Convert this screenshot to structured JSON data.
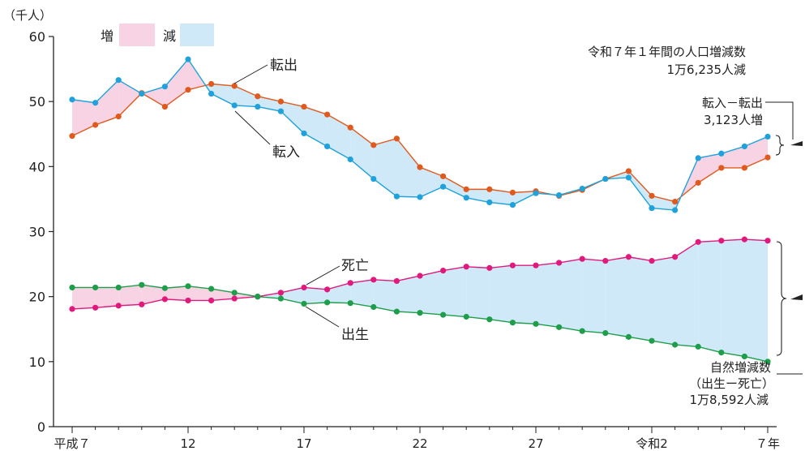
{
  "chart_data": {
    "type": "line",
    "unit_label": "（千人）",
    "ylim": [
      0,
      60
    ],
    "y_ticks": [
      "0",
      "10",
      "20",
      "30",
      "40",
      "50",
      "60"
    ],
    "x_tick_labels": [
      {
        "index": 0,
        "label": "平成７"
      },
      {
        "index": 5,
        "label": "12"
      },
      {
        "index": 10,
        "label": "17"
      },
      {
        "index": 15,
        "label": "22"
      },
      {
        "index": 20,
        "label": "27"
      },
      {
        "index": 25,
        "label": "令和2"
      },
      {
        "index": 30,
        "label": "７年"
      }
    ],
    "legend": {
      "increase": "増",
      "decrease": "減"
    },
    "colors": {
      "increase_fill": "#f8d3e4",
      "decrease_fill": "#cfe9f8",
      "tenshutsu": "#e05a1e",
      "tennyu": "#1fa2dc",
      "shibou": "#e0197d",
      "shussei": "#1e9e4a"
    },
    "series": [
      {
        "name": "転出",
        "key": "tenshutsu",
        "values": [
          44.7,
          46.4,
          47.7,
          51.3,
          49.2,
          51.8,
          52.7,
          52.4,
          50.8,
          50.0,
          49.2,
          48.0,
          46.0,
          43.3,
          44.3,
          39.9,
          38.5,
          36.5,
          36.5,
          36.0,
          36.2,
          35.5,
          36.4,
          38.1,
          39.3,
          35.5,
          34.6,
          37.5,
          39.8,
          39.8,
          41.4
        ]
      },
      {
        "name": "転入",
        "key": "tennyu",
        "values": [
          50.3,
          49.8,
          53.3,
          51.2,
          52.3,
          56.5,
          51.2,
          49.4,
          49.2,
          48.5,
          45.1,
          43.1,
          41.1,
          38.1,
          35.4,
          35.3,
          36.9,
          35.2,
          34.5,
          34.1,
          35.9,
          35.6,
          36.6,
          38.1,
          38.3,
          33.6,
          33.3,
          41.3,
          42.0,
          43.1,
          44.6
        ]
      },
      {
        "name": "死亡",
        "key": "shibou",
        "values": [
          18.1,
          18.3,
          18.6,
          18.8,
          19.6,
          19.4,
          19.4,
          19.7,
          20.0,
          20.6,
          21.4,
          21.1,
          22.1,
          22.6,
          22.4,
          23.2,
          24.0,
          24.6,
          24.4,
          24.8,
          24.8,
          25.2,
          25.8,
          25.5,
          26.1,
          25.5,
          26.1,
          28.4,
          28.6,
          28.8,
          28.6
        ]
      },
      {
        "name": "出生",
        "key": "shussei",
        "values": [
          21.4,
          21.4,
          21.4,
          21.8,
          21.3,
          21.6,
          21.2,
          20.6,
          20.0,
          19.7,
          18.9,
          19.1,
          19.0,
          18.4,
          17.7,
          17.5,
          17.2,
          16.9,
          16.5,
          16.0,
          15.8,
          15.3,
          14.7,
          14.4,
          13.8,
          13.2,
          12.6,
          12.3,
          11.4,
          10.8,
          10.0
        ]
      }
    ],
    "annotations": {
      "tenshutsu_label": "転出",
      "tennyu_label": "転入",
      "shibou_label": "死亡",
      "shussei_label": "出生",
      "summary_line1": "令和７年１年間の人口増減数",
      "summary_line2": "1万6,235人減",
      "social_line1": "転入－転出",
      "social_line2": "3,123人増",
      "natural_line1": "自然増減数",
      "natural_line2": "（出生ー死亡）",
      "natural_line3": "1万8,592人減"
    }
  }
}
